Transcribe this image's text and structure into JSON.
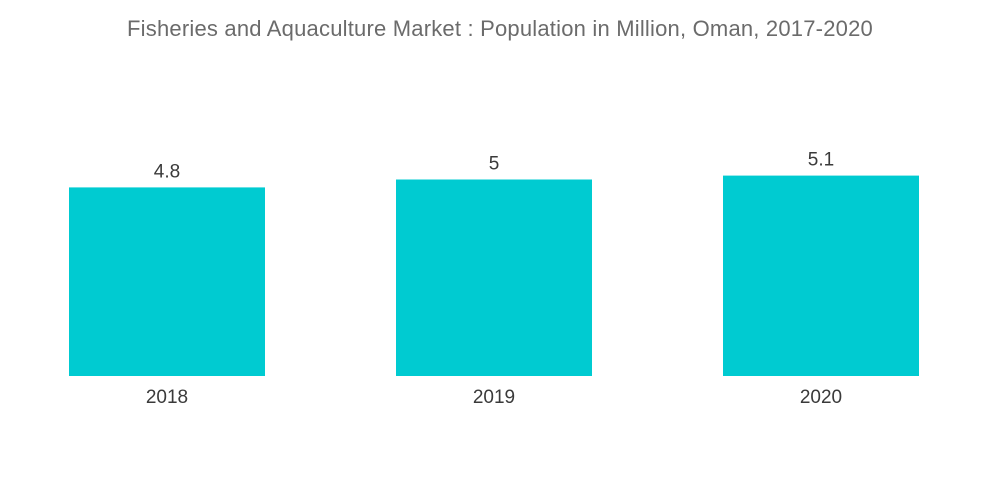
{
  "chart_data": {
    "type": "bar",
    "title": "Fisheries and Aquaculture Market : Population in Million, Oman, 2017-2020",
    "categories": [
      "2018",
      "2019",
      "2020"
    ],
    "values": [
      4.8,
      5,
      5.1
    ],
    "value_labels": [
      "4.8",
      "5",
      "5.1"
    ],
    "xlabel": "",
    "ylabel": "",
    "grid": false,
    "bar_color": "#00cbd1"
  }
}
